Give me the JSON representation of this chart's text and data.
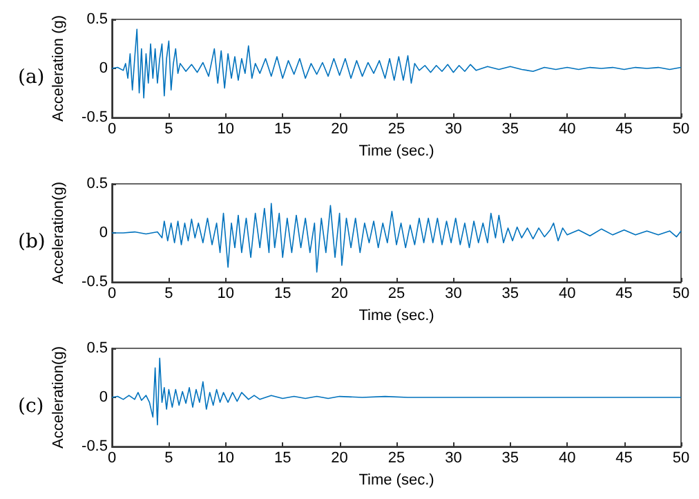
{
  "chart_data": [
    {
      "type": "line",
      "title": "(a)",
      "xlabel": "Time (sec.)",
      "ylabel": "Acceleration (g)",
      "color": "#0072bd",
      "marker": "none",
      "grid": false,
      "xlim": [
        0,
        50
      ],
      "ylim": [
        -0.5,
        0.5
      ],
      "xticks": [
        0,
        5,
        10,
        15,
        20,
        25,
        30,
        35,
        40,
        45,
        50
      ],
      "yticks": [
        -0.5,
        0,
        0.5
      ],
      "x": [
        0,
        0.5,
        1,
        1.2,
        1.4,
        1.6,
        1.8,
        2.0,
        2.2,
        2.4,
        2.6,
        2.8,
        3.0,
        3.2,
        3.4,
        3.6,
        3.8,
        4.0,
        4.2,
        4.4,
        4.6,
        4.8,
        5.0,
        5.2,
        5.4,
        5.6,
        5.8,
        6,
        6.5,
        7,
        7.5,
        8,
        8.5,
        9,
        9.3,
        9.6,
        9.9,
        10.2,
        10.5,
        10.8,
        11.1,
        11.4,
        11.7,
        12,
        12.3,
        12.6,
        13,
        13.5,
        14,
        14.5,
        15,
        15.5,
        16,
        16.5,
        17,
        17.5,
        18,
        18.5,
        19,
        19.5,
        20,
        20.5,
        21,
        21.5,
        22,
        22.5,
        23,
        23.5,
        24,
        24.4,
        24.8,
        25.2,
        25.6,
        26,
        26.3,
        26.6,
        27,
        27.5,
        28,
        28.5,
        29,
        29.5,
        30,
        30.5,
        31,
        31.5,
        32,
        33,
        34,
        35,
        36,
        37,
        38,
        39,
        40,
        41,
        42,
        43,
        44,
        45,
        46,
        47,
        48,
        49,
        50
      ],
      "values": [
        0,
        0.01,
        -0.02,
        0.05,
        -0.1,
        0.15,
        -0.22,
        0.1,
        0.4,
        -0.25,
        0.2,
        -0.3,
        0.15,
        -0.15,
        0.25,
        -0.1,
        0.2,
        -0.15,
        0.1,
        0.25,
        -0.28,
        0.1,
        0.28,
        -0.22,
        0.05,
        0.2,
        -0.05,
        0.05,
        -0.03,
        0.04,
        -0.04,
        0.06,
        -0.08,
        0.2,
        -0.15,
        0.18,
        -0.2,
        0.15,
        -0.1,
        0.12,
        -0.12,
        0.1,
        -0.05,
        0.23,
        -0.1,
        0.05,
        -0.05,
        0.1,
        -0.08,
        0.12,
        -0.1,
        0.08,
        -0.06,
        0.1,
        -0.1,
        0.05,
        -0.06,
        0.06,
        -0.08,
        0.1,
        -0.07,
        0.1,
        -0.1,
        0.08,
        -0.08,
        0.06,
        -0.05,
        0.08,
        -0.1,
        0.1,
        -0.12,
        0.12,
        -0.12,
        0.13,
        -0.15,
        0.05,
        -0.02,
        0.03,
        -0.04,
        0.03,
        -0.03,
        0.04,
        -0.04,
        0.03,
        -0.03,
        0.04,
        -0.02,
        0.02,
        -0.01,
        0.02,
        -0.01,
        -0.03,
        0.01,
        -0.01,
        0.01,
        -0.01,
        0.01,
        0,
        0.01,
        -0.01,
        0.01,
        0,
        0.01,
        -0.01,
        0.01
      ]
    },
    {
      "type": "line",
      "title": "(b)",
      "xlabel": "Time (sec.)",
      "ylabel": "Acceleration(g)",
      "color": "#0072bd",
      "marker": "none",
      "grid": false,
      "xlim": [
        0,
        50
      ],
      "ylim": [
        -0.5,
        0.5
      ],
      "xticks": [
        0,
        5,
        10,
        15,
        20,
        25,
        30,
        35,
        40,
        45,
        50
      ],
      "yticks": [
        -0.5,
        0,
        0.5
      ],
      "x": [
        0,
        1,
        2,
        3,
        4,
        4.4,
        4.6,
        4.9,
        5.2,
        5.5,
        5.8,
        6.1,
        6.4,
        6.7,
        7,
        7.3,
        7.6,
        8,
        8.4,
        8.8,
        9.2,
        9.5,
        9.8,
        10.2,
        10.5,
        10.8,
        11.1,
        11.4,
        11.8,
        12.2,
        12.6,
        13,
        13.4,
        13.8,
        14,
        14.3,
        14.7,
        15,
        15.4,
        15.8,
        16.2,
        16.6,
        17,
        17.4,
        17.8,
        18,
        18.4,
        18.8,
        19.2,
        19.6,
        20,
        20.2,
        20.6,
        21,
        21.4,
        21.8,
        22.2,
        22.6,
        23,
        23.4,
        23.8,
        24.2,
        24.6,
        25,
        25.4,
        25.8,
        26.2,
        26.6,
        27,
        27.4,
        27.8,
        28.2,
        28.6,
        29,
        29.4,
        29.8,
        30.2,
        30.6,
        31,
        31.4,
        31.8,
        32.2,
        32.6,
        33,
        33.3,
        33.7,
        34,
        34.4,
        34.8,
        35.2,
        35.6,
        36,
        36.5,
        37,
        37.5,
        38,
        38.5,
        38.8,
        39.2,
        39.6,
        40,
        41,
        42,
        43,
        44,
        45,
        46,
        47,
        48,
        49,
        49.6,
        50
      ],
      "values": [
        0,
        0,
        0.01,
        -0.01,
        0.01,
        -0.05,
        0.12,
        -0.08,
        0.1,
        -0.1,
        0.12,
        -0.12,
        0.1,
        -0.08,
        0.14,
        -0.05,
        0.1,
        -0.1,
        0.15,
        -0.12,
        0.1,
        -0.2,
        0.2,
        -0.35,
        0.1,
        -0.15,
        0.18,
        -0.2,
        0.15,
        -0.25,
        0.2,
        -0.15,
        0.25,
        -0.2,
        0.3,
        -0.15,
        0.2,
        -0.25,
        0.15,
        -0.2,
        0.18,
        -0.15,
        0.15,
        -0.2,
        0.1,
        -0.4,
        0.15,
        -0.2,
        0.28,
        -0.25,
        0.2,
        -0.33,
        0.15,
        -0.15,
        0.15,
        -0.2,
        0.1,
        -0.1,
        0.12,
        -0.15,
        0.1,
        -0.1,
        0.22,
        -0.12,
        0.1,
        -0.15,
        0.08,
        -0.12,
        0.15,
        -0.1,
        0.15,
        -0.1,
        0.15,
        -0.12,
        0.12,
        -0.1,
        0.15,
        -0.12,
        0.1,
        -0.15,
        0.12,
        -0.1,
        0.1,
        -0.1,
        0.2,
        -0.05,
        0.18,
        -0.1,
        0.05,
        -0.08,
        0.06,
        -0.05,
        0.05,
        -0.06,
        0.05,
        -0.04,
        0.03,
        0.1,
        -0.08,
        0.05,
        -0.02,
        0.03,
        -0.03,
        0.04,
        -0.02,
        0.03,
        -0.02,
        0.02,
        -0.02,
        0.02,
        -0.04,
        0.02
      ]
    },
    {
      "type": "line",
      "title": "(c)",
      "xlabel": "Time (sec.)",
      "ylabel": "Acceleration(g)",
      "color": "#0072bd",
      "marker": "none",
      "grid": false,
      "xlim": [
        0,
        50
      ],
      "ylim": [
        -0.5,
        0.5
      ],
      "xticks": [
        0,
        5,
        10,
        15,
        20,
        25,
        30,
        35,
        40,
        45,
        50
      ],
      "yticks": [
        -0.5,
        0,
        0.5
      ],
      "x": [
        0,
        0.5,
        1,
        1.5,
        2,
        2.3,
        2.6,
        3,
        3.3,
        3.6,
        3.8,
        4.0,
        4.2,
        4.4,
        4.6,
        4.8,
        5,
        5.3,
        5.6,
        5.9,
        6.2,
        6.5,
        6.8,
        7.1,
        7.4,
        7.7,
        8,
        8.3,
        8.6,
        8.9,
        9.2,
        9.5,
        9.8,
        10.2,
        10.6,
        11,
        11.4,
        12,
        12.5,
        13,
        14,
        15,
        16,
        17,
        18,
        19,
        20,
        22,
        24,
        26,
        28,
        30,
        35,
        40,
        45,
        50
      ],
      "values": [
        0,
        0.01,
        -0.02,
        0.02,
        -0.02,
        0.05,
        -0.03,
        0.02,
        -0.05,
        -0.2,
        0.3,
        -0.28,
        0.4,
        -0.05,
        0.1,
        -0.12,
        0.08,
        -0.1,
        0.08,
        -0.08,
        0.06,
        -0.06,
        0.1,
        -0.1,
        0.08,
        -0.05,
        0.16,
        -0.12,
        0.05,
        -0.08,
        0.08,
        -0.05,
        0.05,
        -0.05,
        0.05,
        -0.04,
        0.05,
        -0.02,
        0.02,
        -0.02,
        0.02,
        -0.01,
        0.01,
        -0.01,
        0.01,
        -0.01,
        0.01,
        0,
        0.01,
        0,
        0,
        0,
        0,
        0,
        0,
        0
      ]
    }
  ]
}
